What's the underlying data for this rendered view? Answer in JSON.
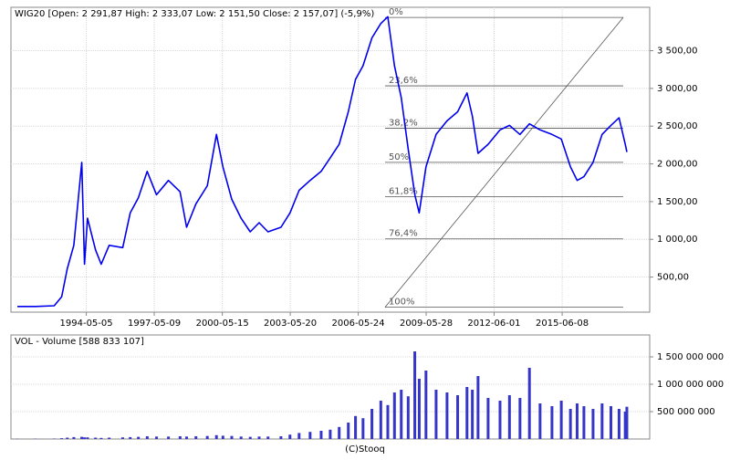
{
  "chart_data": [
    {
      "type": "line",
      "title": "WIG20 [Open: 2 291,87  High: 2 333,07  Low: 2 151,50  Close: 2 157,07] (-5,9%)",
      "x": [
        "1991-04-15",
        "1992-02-01",
        "1992-12-01",
        "1993-04-01",
        "1993-07-01",
        "1993-10-15",
        "1994-02-20",
        "1994-04-05",
        "1994-05-25",
        "1994-10-01",
        "1995-01-01",
        "1995-05-10",
        "1995-12-15",
        "1996-04-15",
        "1996-08-25",
        "1997-01-15",
        "1997-06-15",
        "1997-12-25",
        "1998-07-01",
        "1998-10-15",
        "1999-03-15",
        "1999-09-15",
        "2000-02-10",
        "2000-05-25",
        "2000-10-15",
        "2001-03-15",
        "2001-08-10",
        "2002-01-01",
        "2002-05-25",
        "2002-12-20",
        "2003-05-15",
        "2003-10-10",
        "2004-04-05",
        "2004-10-01",
        "2005-02-25",
        "2005-07-20",
        "2005-12-15",
        "2006-04-10",
        "2006-08-10",
        "2007-01-01",
        "2007-05-25",
        "2007-09-15",
        "2008-01-01",
        "2008-04-20",
        "2008-08-10",
        "2008-11-25",
        "2009-02-05",
        "2009-05-25",
        "2009-11-05",
        "2010-05-01",
        "2010-10-20",
        "2011-03-20",
        "2011-06-15",
        "2011-09-15",
        "2012-02-25",
        "2012-09-05",
        "2013-02-05",
        "2013-07-25",
        "2013-12-25",
        "2014-06-15",
        "2014-12-25",
        "2015-05-25",
        "2015-10-20",
        "2016-02-05",
        "2016-05-25",
        "2016-10-20",
        "2017-03-15",
        "2017-08-05",
        "2017-12-15",
        "2018-03-25",
        "2018-04-20"
      ],
      "values": [
        110,
        110,
        120,
        240,
        610,
        920,
        2020,
        670,
        1280,
        860,
        670,
        920,
        890,
        1350,
        1550,
        1900,
        1590,
        1780,
        1630,
        1160,
        1470,
        1710,
        2390,
        1960,
        1530,
        1280,
        1100,
        1220,
        1100,
        1160,
        1350,
        1650,
        1780,
        1900,
        2080,
        2260,
        2690,
        3120,
        3300,
        3670,
        3860,
        3950,
        3300,
        2880,
        2200,
        1590,
        1350,
        1960,
        2390,
        2570,
        2690,
        2940,
        2630,
        2140,
        2260,
        2450,
        2510,
        2390,
        2530,
        2450,
        2390,
        2330,
        1960,
        1780,
        1830,
        2020,
        2390,
        2510,
        2610,
        2260,
        2157
      ],
      "color": "#0000ee",
      "xlim": [
        "1991-01-01",
        "2019-04-25"
      ],
      "xticks": [
        "1994-05-05",
        "1997-05-09",
        "2000-05-15",
        "2003-05-20",
        "2006-05-24",
        "2009-05-28",
        "2012-06-01",
        "2015-06-08"
      ],
      "ylim": [
        35,
        4075
      ],
      "yticks": [
        {
          "value": 500,
          "label": "500,00"
        },
        {
          "value": 1000,
          "label": "1 000,00"
        },
        {
          "value": 1500,
          "label": "1 500,00"
        },
        {
          "value": 2000,
          "label": "2 000,00"
        },
        {
          "value": 2500,
          "label": "2 500,00"
        },
        {
          "value": 3000,
          "label": "3 000,00"
        },
        {
          "value": 3500,
          "label": "3 500,00"
        }
      ],
      "grid": true,
      "fibonacci": {
        "x": [
          "2007-08-01",
          "2018-02-20"
        ],
        "levels": [
          {
            "label": "0%",
            "value": 3940
          },
          {
            "label": "23,6%",
            "value": 3034
          },
          {
            "label": "38,2%",
            "value": 2473
          },
          {
            "label": "50%",
            "value": 2020
          },
          {
            "label": "61,8%",
            "value": 1567
          },
          {
            "label": "76,4%",
            "value": 1006
          },
          {
            "label": "100%",
            "value": 100
          }
        ]
      }
    },
    {
      "type": "bar",
      "title": "VOL - Volume [588 833 107]",
      "x": [
        "1991-04-15",
        "1992-02-01",
        "1992-12-01",
        "1993-04-01",
        "1993-07-01",
        "1993-10-15",
        "1994-02-20",
        "1994-04-05",
        "1994-05-25",
        "1994-10-01",
        "1995-01-01",
        "1995-05-10",
        "1995-12-15",
        "1996-04-15",
        "1996-08-25",
        "1997-01-15",
        "1997-06-15",
        "1997-12-25",
        "1998-07-01",
        "1998-10-15",
        "1999-03-15",
        "1999-09-15",
        "2000-02-10",
        "2000-05-25",
        "2000-10-15",
        "2001-03-15",
        "2001-08-10",
        "2002-01-01",
        "2002-05-25",
        "2002-12-20",
        "2003-05-15",
        "2003-10-10",
        "2004-04-05",
        "2004-10-01",
        "2005-02-25",
        "2005-07-20",
        "2005-12-15",
        "2006-04-10",
        "2006-08-10",
        "2007-01-01",
        "2007-05-25",
        "2007-09-15",
        "2008-01-01",
        "2008-04-20",
        "2008-08-10",
        "2008-11-25",
        "2009-02-05",
        "2009-05-25",
        "2009-11-05",
        "2010-05-01",
        "2010-10-20",
        "2011-03-20",
        "2011-06-15",
        "2011-09-15",
        "2012-02-25",
        "2012-09-05",
        "2013-02-05",
        "2013-07-25",
        "2013-12-25",
        "2014-06-15",
        "2014-12-25",
        "2015-05-25",
        "2015-10-20",
        "2016-02-05",
        "2016-05-25",
        "2016-10-20",
        "2017-03-15",
        "2017-08-05",
        "2017-12-15",
        "2018-03-25",
        "2018-04-20"
      ],
      "values": [
        3000000,
        5000000,
        8000000,
        15000000,
        25000000,
        35000000,
        40000000,
        30000000,
        30000000,
        25000000,
        20000000,
        25000000,
        30000000,
        35000000,
        40000000,
        50000000,
        45000000,
        45000000,
        50000000,
        45000000,
        50000000,
        55000000,
        70000000,
        60000000,
        55000000,
        45000000,
        40000000,
        45000000,
        45000000,
        50000000,
        80000000,
        110000000,
        130000000,
        150000000,
        170000000,
        220000000,
        300000000,
        420000000,
        380000000,
        550000000,
        700000000,
        620000000,
        850000000,
        900000000,
        780000000,
        1600000000,
        1100000000,
        1250000000,
        900000000,
        850000000,
        800000000,
        950000000,
        900000000,
        1150000000,
        750000000,
        700000000,
        800000000,
        750000000,
        1300000000,
        650000000,
        600000000,
        700000000,
        550000000,
        650000000,
        600000000,
        550000000,
        650000000,
        600000000,
        550000000,
        500000000,
        588833107
      ],
      "color": "#3535c8",
      "xlim": [
        "1991-01-01",
        "2019-04-25"
      ],
      "ylim": [
        0,
        1900000000
      ],
      "yticks": [
        {
          "value": 500000000,
          "label": "500 000 000"
        },
        {
          "value": 1000000000,
          "label": "1 000 000 000"
        },
        {
          "value": 1500000000,
          "label": "1 500 000 000"
        }
      ],
      "grid": true
    }
  ],
  "footer": "(C)Stooq"
}
